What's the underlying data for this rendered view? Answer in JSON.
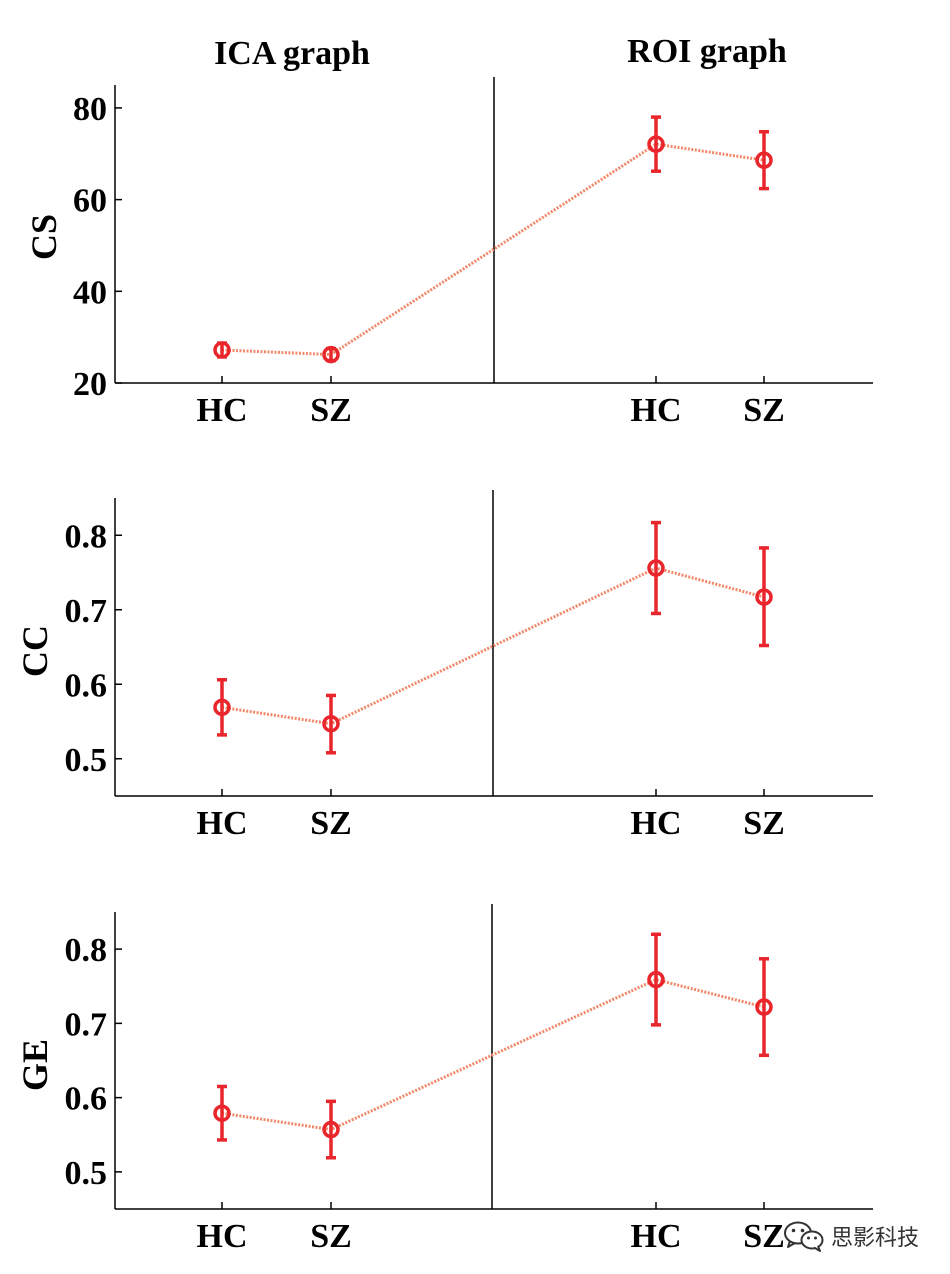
{
  "colors": {
    "marker": "#e8262b",
    "line": "#f2886a",
    "axis": "#000000"
  },
  "columns": [
    "ICA graph",
    "ROI graph"
  ],
  "chart_data": [
    {
      "type": "line",
      "ylabel": "CS",
      "ylim": [
        20,
        85
      ],
      "yticks": [
        "20",
        "40",
        "60",
        "80"
      ],
      "categories": [
        "HC",
        "SZ",
        "HC",
        "SZ"
      ],
      "groups": [
        "ICA graph",
        "ICA graph",
        "ROI graph",
        "ROI graph"
      ],
      "values": [
        27.2,
        26.2,
        72.1,
        68.6
      ],
      "error_low": [
        25.7,
        24.9,
        66.2,
        62.4
      ],
      "error_high": [
        28.7,
        27.5,
        78.0,
        74.8
      ]
    },
    {
      "type": "line",
      "ylabel": "CC",
      "ylim": [
        0.45,
        0.85
      ],
      "yticks": [
        "0.5",
        "0.6",
        "0.7",
        "0.8"
      ],
      "categories": [
        "HC",
        "SZ",
        "HC",
        "SZ"
      ],
      "groups": [
        "ICA graph",
        "ICA graph",
        "ROI graph",
        "ROI graph"
      ],
      "values": [
        0.569,
        0.547,
        0.756,
        0.717
      ],
      "error_low": [
        0.532,
        0.508,
        0.695,
        0.652
      ],
      "error_high": [
        0.606,
        0.585,
        0.817,
        0.783
      ]
    },
    {
      "type": "line",
      "ylabel": "GE",
      "ylim": [
        0.45,
        0.85
      ],
      "yticks": [
        "0.5",
        "0.6",
        "0.7",
        "0.8"
      ],
      "categories": [
        "HC",
        "SZ",
        "HC",
        "SZ"
      ],
      "groups": [
        "ICA graph",
        "ICA graph",
        "ROI graph",
        "ROI graph"
      ],
      "values": [
        0.579,
        0.557,
        0.759,
        0.722
      ],
      "error_low": [
        0.543,
        0.519,
        0.698,
        0.657
      ],
      "error_high": [
        0.615,
        0.595,
        0.82,
        0.787
      ]
    }
  ],
  "watermark": {
    "text": "思影科技",
    "icon": "wechat-icon"
  }
}
